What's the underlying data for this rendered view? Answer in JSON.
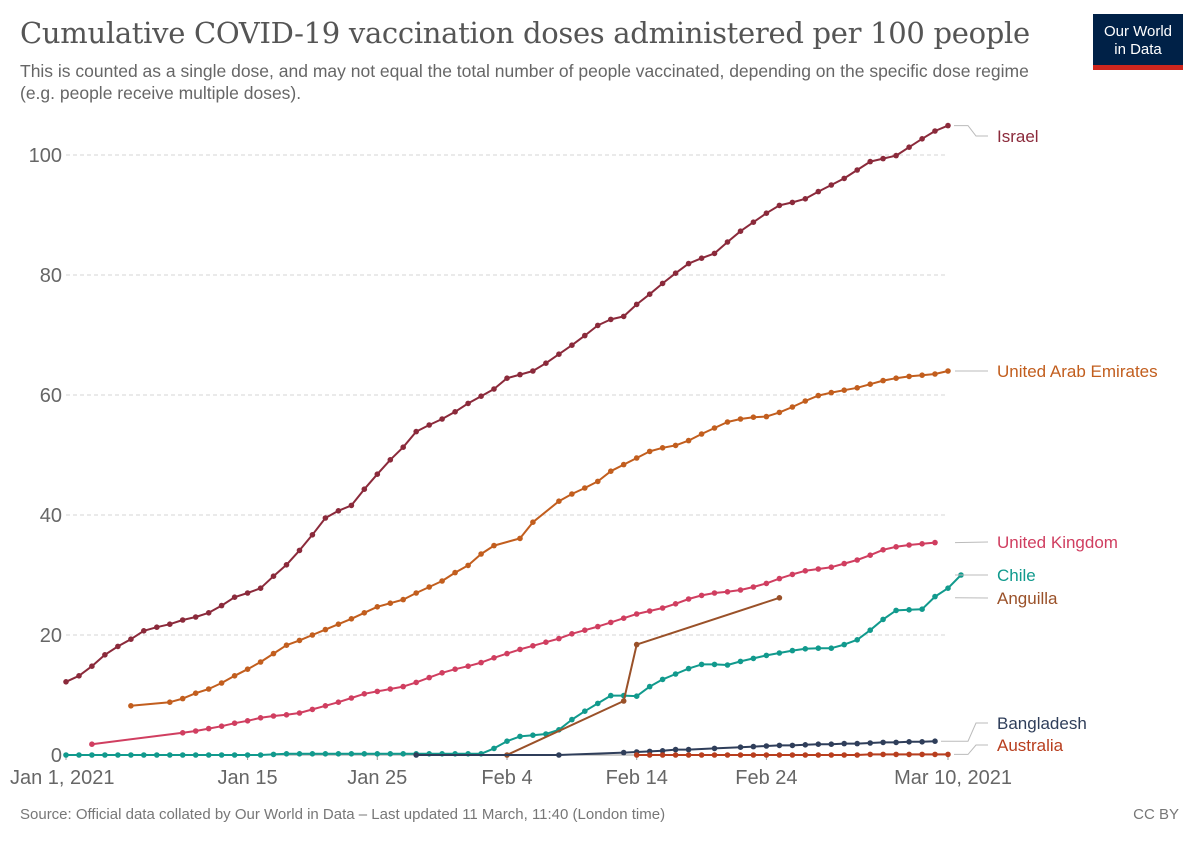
{
  "header": {
    "title": "Cumulative COVID-19 vaccination doses administered per 100 people",
    "subtitle": "This is counted as a single dose, and may not equal the total number of people vaccinated, depending on the specific dose regime (e.g. people receive multiple doses).",
    "logo_line1": "Our World",
    "logo_line2": "in Data"
  },
  "footer": {
    "source": "Source: Official data collated by Our World in Data – Last updated 11 March, 11:40 (London time)",
    "license": "CC BY"
  },
  "chart_data": {
    "type": "line",
    "x_unit": "date (days, 2021)",
    "x_range": [
      "2021-01-01",
      "2021-03-10"
    ],
    "x_ticks": [
      {
        "day": 0,
        "label": "Jan 1, 2021"
      },
      {
        "day": 14,
        "label": "Jan 15"
      },
      {
        "day": 24,
        "label": "Jan 25"
      },
      {
        "day": 34,
        "label": "Feb 4"
      },
      {
        "day": 44,
        "label": "Feb 14"
      },
      {
        "day": 54,
        "label": "Feb 24"
      },
      {
        "day": 68,
        "label": "Mar 10, 2021"
      }
    ],
    "ylim": [
      0,
      105
    ],
    "y_ticks": [
      0,
      20,
      40,
      60,
      80,
      100
    ],
    "grid": "horizontal dashed",
    "series": [
      {
        "name": "Israel",
        "color": "#8b2a3b",
        "points": [
          [
            0,
            12.2
          ],
          [
            1,
            13.2
          ],
          [
            2,
            14.8
          ],
          [
            3,
            16.7
          ],
          [
            4,
            18.1
          ],
          [
            5,
            19.3
          ],
          [
            6,
            20.7
          ],
          [
            7,
            21.3
          ],
          [
            8,
            21.8
          ],
          [
            9,
            22.5
          ],
          [
            10,
            23
          ],
          [
            11,
            23.7
          ],
          [
            12,
            24.9
          ],
          [
            13,
            26.3
          ],
          [
            14,
            27
          ],
          [
            15,
            27.8
          ],
          [
            16,
            29.8
          ],
          [
            17,
            31.7
          ],
          [
            18,
            34.1
          ],
          [
            19,
            36.7
          ],
          [
            20,
            39.5
          ],
          [
            21,
            40.7
          ],
          [
            22,
            41.6
          ],
          [
            23,
            44.3
          ],
          [
            24,
            46.8
          ],
          [
            25,
            49.2
          ],
          [
            26,
            51.3
          ],
          [
            27,
            53.9
          ],
          [
            28,
            55
          ],
          [
            29,
            56
          ],
          [
            30,
            57.2
          ],
          [
            31,
            58.6
          ],
          [
            32,
            59.8
          ],
          [
            33,
            61
          ],
          [
            34,
            62.8
          ],
          [
            35,
            63.4
          ],
          [
            36,
            64
          ],
          [
            37,
            65.3
          ],
          [
            38,
            66.8
          ],
          [
            39,
            68.3
          ],
          [
            40,
            69.9
          ],
          [
            41,
            71.6
          ],
          [
            42,
            72.6
          ],
          [
            43,
            73.1
          ],
          [
            44,
            75.1
          ],
          [
            45,
            76.8
          ],
          [
            46,
            78.6
          ],
          [
            47,
            80.3
          ],
          [
            48,
            81.9
          ],
          [
            49,
            82.8
          ],
          [
            50,
            83.6
          ],
          [
            51,
            85.5
          ],
          [
            52,
            87.3
          ],
          [
            53,
            88.8
          ],
          [
            54,
            90.3
          ],
          [
            55,
            91.6
          ],
          [
            56,
            92.1
          ],
          [
            57,
            92.7
          ],
          [
            58,
            93.9
          ],
          [
            59,
            95
          ],
          [
            60,
            96.1
          ],
          [
            61,
            97.5
          ],
          [
            62,
            98.9
          ],
          [
            63,
            99.4
          ],
          [
            64,
            99.9
          ],
          [
            65,
            101.3
          ],
          [
            66,
            102.7
          ],
          [
            67,
            104
          ],
          [
            68,
            104.9
          ]
        ]
      },
      {
        "name": "United Arab Emirates",
        "color": "#c25e1e",
        "points": [
          [
            5,
            8.2
          ],
          [
            8,
            8.8
          ],
          [
            9,
            9.4
          ],
          [
            10,
            10.3
          ],
          [
            11,
            11
          ],
          [
            12,
            12
          ],
          [
            13,
            13.2
          ],
          [
            14,
            14.3
          ],
          [
            15,
            15.5
          ],
          [
            16,
            16.9
          ],
          [
            17,
            18.3
          ],
          [
            18,
            19.1
          ],
          [
            19,
            20
          ],
          [
            20,
            20.9
          ],
          [
            21,
            21.8
          ],
          [
            22,
            22.7
          ],
          [
            23,
            23.7
          ],
          [
            24,
            24.7
          ],
          [
            25,
            25.3
          ],
          [
            26,
            25.9
          ],
          [
            27,
            27
          ],
          [
            28,
            28
          ],
          [
            29,
            29
          ],
          [
            30,
            30.4
          ],
          [
            31,
            31.6
          ],
          [
            32,
            33.5
          ],
          [
            33,
            34.9
          ],
          [
            35,
            36.1
          ],
          [
            36,
            38.8
          ],
          [
            38,
            42.3
          ],
          [
            39,
            43.5
          ],
          [
            40,
            44.5
          ],
          [
            41,
            45.6
          ],
          [
            42,
            47.3
          ],
          [
            43,
            48.4
          ],
          [
            44,
            49.5
          ],
          [
            45,
            50.6
          ],
          [
            46,
            51.2
          ],
          [
            47,
            51.6
          ],
          [
            48,
            52.4
          ],
          [
            49,
            53.5
          ],
          [
            50,
            54.5
          ],
          [
            51,
            55.5
          ],
          [
            52,
            56
          ],
          [
            53,
            56.3
          ],
          [
            54,
            56.4
          ],
          [
            55,
            57.1
          ],
          [
            56,
            58
          ],
          [
            57,
            59
          ],
          [
            58,
            59.9
          ],
          [
            59,
            60.4
          ],
          [
            60,
            60.8
          ],
          [
            61,
            61.2
          ],
          [
            62,
            61.8
          ],
          [
            63,
            62.4
          ],
          [
            64,
            62.8
          ],
          [
            65,
            63.1
          ],
          [
            66,
            63.3
          ],
          [
            67,
            63.5
          ],
          [
            68,
            64
          ]
        ]
      },
      {
        "name": "United Kingdom",
        "color": "#d03e60",
        "points": [
          [
            2,
            1.8
          ],
          [
            9,
            3.7
          ],
          [
            10,
            4
          ],
          [
            11,
            4.4
          ],
          [
            12,
            4.8
          ],
          [
            13,
            5.3
          ],
          [
            14,
            5.7
          ],
          [
            15,
            6.2
          ],
          [
            16,
            6.5
          ],
          [
            17,
            6.7
          ],
          [
            18,
            7
          ],
          [
            19,
            7.6
          ],
          [
            20,
            8.2
          ],
          [
            21,
            8.8
          ],
          [
            22,
            9.5
          ],
          [
            23,
            10.2
          ],
          [
            24,
            10.6
          ],
          [
            25,
            11
          ],
          [
            26,
            11.4
          ],
          [
            27,
            12.1
          ],
          [
            28,
            12.9
          ],
          [
            29,
            13.7
          ],
          [
            30,
            14.3
          ],
          [
            31,
            14.8
          ],
          [
            32,
            15.4
          ],
          [
            33,
            16.2
          ],
          [
            34,
            16.9
          ],
          [
            35,
            17.6
          ],
          [
            36,
            18.2
          ],
          [
            37,
            18.8
          ],
          [
            38,
            19.4
          ],
          [
            39,
            20.2
          ],
          [
            40,
            20.8
          ],
          [
            41,
            21.4
          ],
          [
            42,
            22.1
          ],
          [
            43,
            22.8
          ],
          [
            44,
            23.5
          ],
          [
            45,
            24
          ],
          [
            46,
            24.5
          ],
          [
            47,
            25.2
          ],
          [
            48,
            26
          ],
          [
            49,
            26.6
          ],
          [
            50,
            27
          ],
          [
            51,
            27.2
          ],
          [
            52,
            27.5
          ],
          [
            53,
            28
          ],
          [
            54,
            28.6
          ],
          [
            55,
            29.4
          ],
          [
            56,
            30.1
          ],
          [
            57,
            30.7
          ],
          [
            58,
            31
          ],
          [
            59,
            31.3
          ],
          [
            60,
            31.9
          ],
          [
            61,
            32.5
          ],
          [
            62,
            33.3
          ],
          [
            63,
            34.2
          ],
          [
            64,
            34.7
          ],
          [
            65,
            35
          ],
          [
            66,
            35.2
          ],
          [
            67,
            35.4
          ]
        ]
      },
      {
        "name": "Chile",
        "color": "#119a8d",
        "points": [
          [
            0,
            0
          ],
          [
            1,
            0
          ],
          [
            2,
            0
          ],
          [
            3,
            0
          ],
          [
            4,
            0
          ],
          [
            5,
            0
          ],
          [
            6,
            0
          ],
          [
            7,
            0
          ],
          [
            8,
            0
          ],
          [
            9,
            0
          ],
          [
            10,
            0
          ],
          [
            11,
            0
          ],
          [
            12,
            0
          ],
          [
            13,
            0
          ],
          [
            14,
            0
          ],
          [
            15,
            0
          ],
          [
            16,
            0.1
          ],
          [
            17,
            0.2
          ],
          [
            18,
            0.2
          ],
          [
            19,
            0.2
          ],
          [
            20,
            0.2
          ],
          [
            21,
            0.2
          ],
          [
            22,
            0.2
          ],
          [
            23,
            0.2
          ],
          [
            24,
            0.2
          ],
          [
            25,
            0.2
          ],
          [
            26,
            0.2
          ],
          [
            27,
            0.2
          ],
          [
            28,
            0.2
          ],
          [
            29,
            0.2
          ],
          [
            30,
            0.2
          ],
          [
            31,
            0.2
          ],
          [
            32,
            0.2
          ],
          [
            33,
            1.1
          ],
          [
            34,
            2.3
          ],
          [
            35,
            3.1
          ],
          [
            36,
            3.3
          ],
          [
            37,
            3.5
          ],
          [
            38,
            4.2
          ],
          [
            39,
            5.9
          ],
          [
            40,
            7.3
          ],
          [
            41,
            8.6
          ],
          [
            42,
            9.9
          ],
          [
            43,
            9.9
          ],
          [
            44,
            9.8
          ],
          [
            45,
            11.4
          ],
          [
            46,
            12.6
          ],
          [
            47,
            13.5
          ],
          [
            48,
            14.4
          ],
          [
            49,
            15.1
          ],
          [
            50,
            15.1
          ],
          [
            51,
            15
          ],
          [
            52,
            15.6
          ],
          [
            53,
            16.1
          ],
          [
            54,
            16.6
          ],
          [
            55,
            17
          ],
          [
            56,
            17.4
          ],
          [
            57,
            17.7
          ],
          [
            58,
            17.8
          ],
          [
            59,
            17.8
          ],
          [
            60,
            18.4
          ],
          [
            61,
            19.2
          ],
          [
            62,
            20.8
          ],
          [
            63,
            22.6
          ],
          [
            64,
            24.1
          ],
          [
            65,
            24.2
          ],
          [
            66,
            24.3
          ],
          [
            67,
            26.4
          ],
          [
            68,
            27.8
          ],
          [
            69,
            30
          ]
        ]
      },
      {
        "name": "Anguilla",
        "color": "#9a5129",
        "points": [
          [
            34,
            0
          ],
          [
            43,
            9
          ],
          [
            44,
            18.4
          ],
          [
            55,
            26.2
          ]
        ]
      },
      {
        "name": "Bangladesh",
        "color": "#2f3e5a",
        "points": [
          [
            27,
            0
          ],
          [
            38,
            0
          ],
          [
            43,
            0.4
          ],
          [
            44,
            0.5
          ],
          [
            45,
            0.6
          ],
          [
            46,
            0.7
          ],
          [
            47,
            0.9
          ],
          [
            48,
            0.9
          ],
          [
            50,
            1.1
          ],
          [
            52,
            1.3
          ],
          [
            53,
            1.4
          ],
          [
            54,
            1.5
          ],
          [
            55,
            1.6
          ],
          [
            56,
            1.6
          ],
          [
            57,
            1.7
          ],
          [
            58,
            1.8
          ],
          [
            59,
            1.8
          ],
          [
            60,
            1.9
          ],
          [
            61,
            1.9
          ],
          [
            62,
            2
          ],
          [
            63,
            2.1
          ],
          [
            64,
            2.1
          ],
          [
            65,
            2.2
          ],
          [
            66,
            2.2
          ],
          [
            67,
            2.3
          ]
        ]
      },
      {
        "name": "Australia",
        "color": "#b83e1e",
        "points": [
          [
            44,
            0
          ],
          [
            45,
            0
          ],
          [
            46,
            0
          ],
          [
            47,
            0
          ],
          [
            48,
            0
          ],
          [
            49,
            0
          ],
          [
            50,
            0
          ],
          [
            51,
            0
          ],
          [
            52,
            0
          ],
          [
            53,
            0
          ],
          [
            54,
            0
          ],
          [
            55,
            0
          ],
          [
            56,
            0
          ],
          [
            57,
            0
          ],
          [
            58,
            0
          ],
          [
            59,
            0
          ],
          [
            60,
            0
          ],
          [
            61,
            0
          ],
          [
            62,
            0.1
          ],
          [
            63,
            0.1
          ],
          [
            64,
            0.1
          ],
          [
            65,
            0.1
          ],
          [
            66,
            0.1
          ],
          [
            67,
            0.1
          ],
          [
            68,
            0.1
          ]
        ]
      }
    ]
  }
}
